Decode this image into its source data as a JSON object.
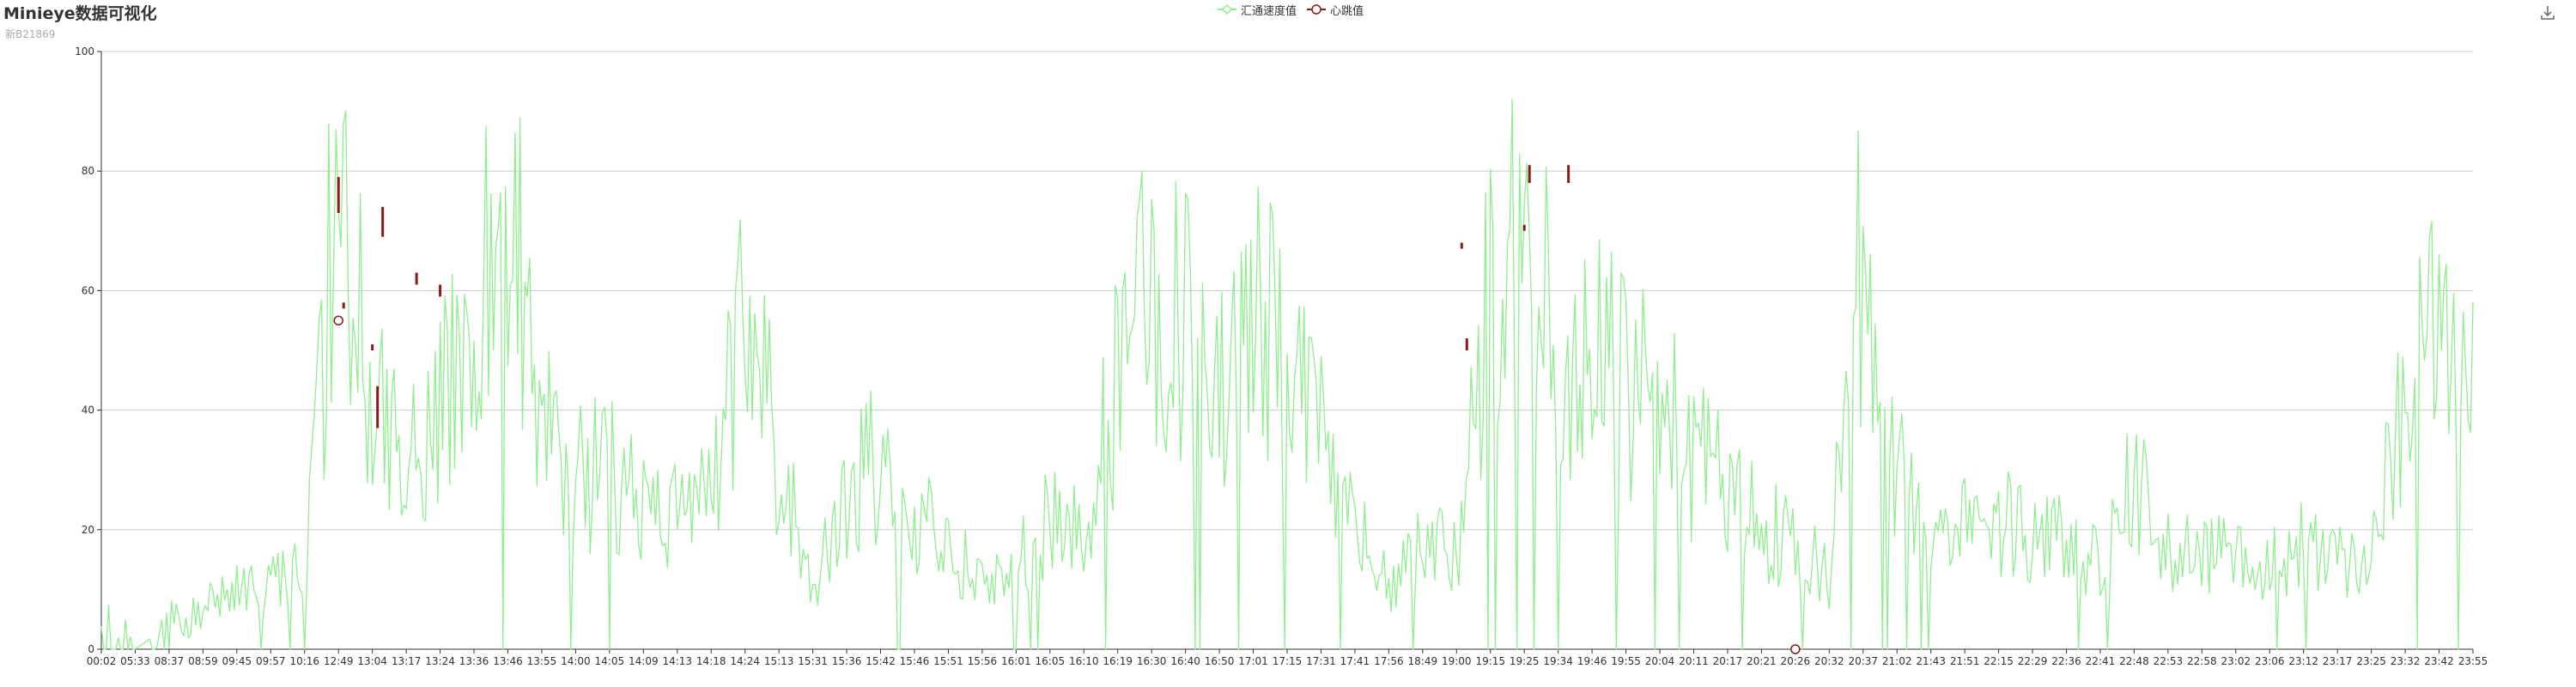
{
  "title": "Minieye数据可视化",
  "subtitle": "新B21869",
  "legend": [
    {
      "name": "汇通速度值",
      "color": "#90ee90",
      "icon": "diamond-outline-icon"
    },
    {
      "name": "心跳值",
      "color": "#8b1a1a",
      "icon": "circle-outline-icon"
    }
  ],
  "toolbar": {
    "download_icon": "download-icon"
  },
  "colors": {
    "speed": "#90ee90",
    "heartbeat": "#8b1a1a",
    "grid": "#cccccc",
    "axis": "#333333"
  },
  "chart_data": {
    "type": "line",
    "title": "Minieye数据可视化",
    "subtitle": "新B21869",
    "xlabel": "",
    "ylabel": "",
    "ylim": [
      0,
      100
    ],
    "yticks": [
      0,
      20,
      40,
      60,
      80,
      100
    ],
    "grid": true,
    "legend_position": "top-center",
    "categories": [
      "00:02",
      "05:33",
      "08:37",
      "08:59",
      "09:45",
      "09:57",
      "10:16",
      "12:49",
      "13:04",
      "13:17",
      "13:24",
      "13:36",
      "13:46",
      "13:55",
      "14:00",
      "14:05",
      "14:09",
      "14:13",
      "14:18",
      "14:24",
      "15:13",
      "15:31",
      "15:36",
      "15:42",
      "15:46",
      "15:51",
      "15:56",
      "16:01",
      "16:05",
      "16:10",
      "16:19",
      "16:30",
      "16:40",
      "16:50",
      "17:01",
      "17:15",
      "17:31",
      "17:41",
      "17:56",
      "18:49",
      "19:00",
      "19:15",
      "19:25",
      "19:34",
      "19:46",
      "19:55",
      "20:04",
      "20:11",
      "20:17",
      "20:21",
      "20:26",
      "20:32",
      "20:37",
      "21:02",
      "21:43",
      "21:51",
      "22:15",
      "22:29",
      "22:36",
      "22:41",
      "22:48",
      "22:53",
      "22:58",
      "23:02",
      "23:06",
      "23:12",
      "23:17",
      "23:25",
      "23:32",
      "23:42",
      "23:55"
    ],
    "series": [
      {
        "name": "汇通速度值",
        "type": "line",
        "approx_values_per_tick": [
          0,
          0,
          4,
          7,
          10,
          11,
          14,
          80,
          45,
          30,
          40,
          50,
          80,
          40,
          28,
          30,
          22,
          24,
          25,
          60,
          32,
          10,
          25,
          32,
          22,
          18,
          10,
          15,
          22,
          20,
          45,
          62,
          55,
          40,
          60,
          45,
          35,
          20,
          10,
          18,
          15,
          60,
          75,
          50,
          48,
          45,
          40,
          32,
          28,
          20,
          18,
          12,
          70,
          30,
          15,
          20,
          22,
          20,
          18,
          14,
          30,
          16,
          17,
          16,
          14,
          18,
          15,
          16,
          45,
          52,
          58
        ]
      },
      {
        "name": "心跳值",
        "type": "marker",
        "points": [
          {
            "x": "12:49",
            "y": 55
          },
          {
            "x": "20:26",
            "y": 0
          }
        ],
        "approx_bars": [
          {
            "x": "12:49",
            "low": 73,
            "high": 79
          },
          {
            "x": "12:49",
            "low": 57,
            "high": 58
          },
          {
            "x": "13:04",
            "low": 69,
            "high": 74
          },
          {
            "x": "13:04",
            "low": 50,
            "high": 51
          },
          {
            "x": "13:04",
            "low": 37,
            "high": 44
          },
          {
            "x": "13:17",
            "low": 61,
            "high": 63
          },
          {
            "x": "13:24",
            "low": 59,
            "high": 61
          },
          {
            "x": "19:00",
            "low": 67,
            "high": 68
          },
          {
            "x": "19:00",
            "low": 50,
            "high": 52
          },
          {
            "x": "19:25",
            "low": 70,
            "high": 71
          },
          {
            "x": "19:25",
            "low": 78,
            "high": 81
          },
          {
            "x": "19:34",
            "low": 78,
            "high": 81
          }
        ]
      }
    ]
  }
}
